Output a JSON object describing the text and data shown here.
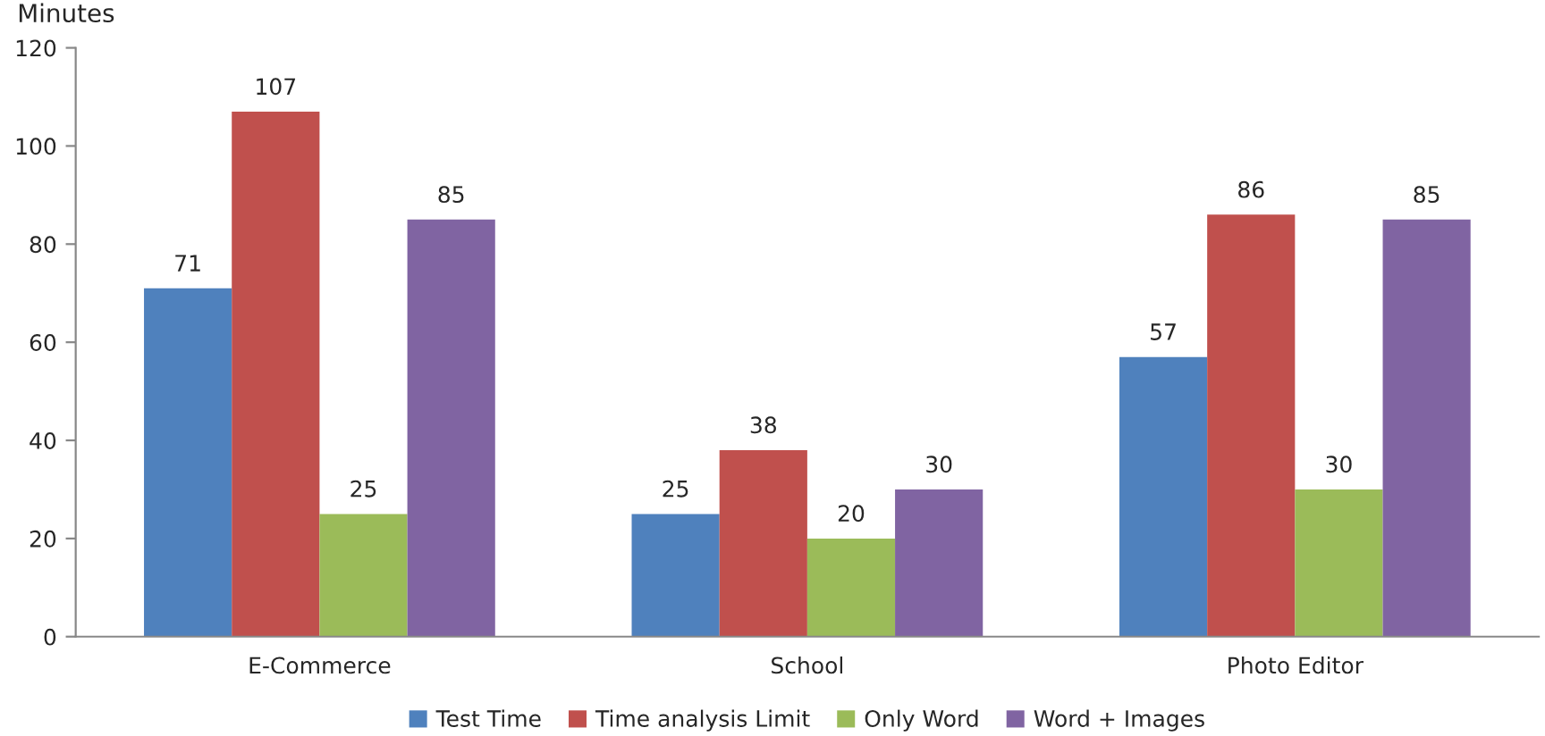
{
  "chart_data": {
    "type": "bar",
    "ylabel": "Minutes",
    "categories": [
      "E-Commerce",
      "School",
      "Photo Editor"
    ],
    "series": [
      {
        "name": "Test Time",
        "color": "#4f81bd",
        "values": [
          71,
          25,
          57
        ]
      },
      {
        "name": "Time analysis Limit",
        "color": "#c0504d",
        "values": [
          107,
          38,
          86
        ]
      },
      {
        "name": "Only Word",
        "color": "#9bbb59",
        "values": [
          25,
          20,
          30
        ]
      },
      {
        "name": "Word + Images",
        "color": "#8064a2",
        "values": [
          85,
          30,
          85
        ]
      }
    ],
    "ylim": [
      0,
      120
    ],
    "yticks": [
      0,
      20,
      40,
      60,
      80,
      100,
      120
    ],
    "data_labels": true,
    "grid": false,
    "legend": "bottom"
  }
}
